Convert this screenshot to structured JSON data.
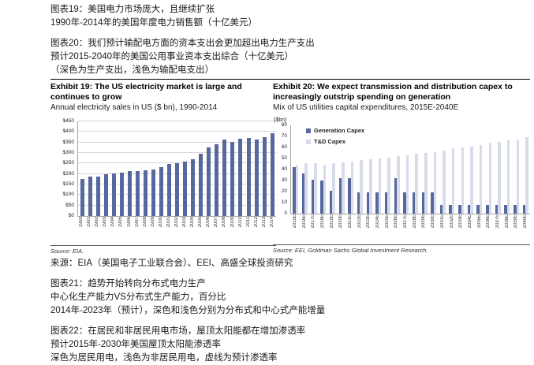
{
  "top_notes": [
    "图表19：美国电力市场庞大，且继续扩张",
    "1990年-2014年的美国年度电力销售额（十亿美元）",
    "图表20：我们预计输配电方面的资本支出会更加超出电力生产支出",
    "预计2015-2040年的美国公用事业资本支出综合（十亿美元）",
    "（深色为生产支出，浅色为输配电支出）"
  ],
  "exhibit19": {
    "title": "Exhibit 19: The US electricity market is large and continues to grow",
    "subtitle": "Annual electricity sales in US ($ bn), 1990-2014",
    "source": "Source: EIA."
  },
  "exhibit20": {
    "title": "Exhibit 20: We expect transmission and distribution capex to increasingly outstrip spending on generation",
    "subtitle": "Mix of US utilities capital expenditures, 2015E-2040E",
    "unit_label": "($bn)",
    "legend": [
      {
        "label": "Generation Capex",
        "color": "#56689E"
      },
      {
        "label": "T&D Capex",
        "color": "#D8DCEA"
      }
    ],
    "source": "Source: EEI, Goldman Sachs Global Investment Research."
  },
  "bottom_notes": [
    "来源：EIA（美国电子工业联合会）、EEI、高盛全球投资研究",
    "图表21：趋势开始转向分布式电力生产",
    "中心化生产能力VS分布式生产能力，百分比",
    "2014年-2023年（预计），深色和浅色分别为分布式和中心式产能增量",
    "图表22：在居民和非居民用电市场，屋顶太阳能都在增加渗透率",
    "预计2015年-2030年美国屋顶太阳能渗透率",
    "深色为居民用电，浅色为非居民用电，虚线为预计渗透率"
  ],
  "colors": {
    "bar_dark": "#56689E",
    "bar_light": "#D8DCEA",
    "gridline": "#D8D8D8",
    "axis": "#A6A6A6"
  },
  "chart_data": [
    {
      "type": "bar",
      "title": "Exhibit 19: The US electricity market is large and continues to grow",
      "subtitle": "Annual electricity sales in US ($ bn), 1990-2014",
      "categories": [
        "1990",
        "1991",
        "1992",
        "1993",
        "1994",
        "1995",
        "1996",
        "1997",
        "1998",
        "1999",
        "2000",
        "2001",
        "2002",
        "2003",
        "2004",
        "2005",
        "2006",
        "2007",
        "2008",
        "2009",
        "2010",
        "2011",
        "2012",
        "2013",
        "2014"
      ],
      "values": [
        178,
        186,
        188,
        198,
        202,
        208,
        213,
        215,
        218,
        220,
        233,
        248,
        250,
        260,
        270,
        298,
        326,
        343,
        363,
        353,
        368,
        371,
        364,
        374,
        392
      ],
      "xlabel": "",
      "ylabel": "$ bn",
      "yprefix": "$",
      "ylim": [
        0,
        450
      ],
      "ystep": 50,
      "grid": true,
      "legend_position": "none"
    },
    {
      "type": "bar",
      "title": "Exhibit 20: We expect transmission and distribution capex to increasingly outstrip spending on generation",
      "subtitle": "Mix of US utilities capital expenditures, 2015E-2040E",
      "categories": [
        "2015E",
        "2016E",
        "2017E",
        "2018E",
        "2019E",
        "2020E",
        "2021E",
        "2022E",
        "2023E",
        "2024E",
        "2025E",
        "2026E",
        "2027E",
        "2028E",
        "2029E",
        "2030E",
        "2031E",
        "2032E",
        "2033E",
        "2034E",
        "2035E",
        "2036E",
        "2037E",
        "2038E",
        "2039E",
        "2040E"
      ],
      "series": [
        {
          "name": "Generation Capex",
          "values": [
            42,
            36.5,
            30.5,
            30,
            20.5,
            32,
            32,
            19,
            19,
            19,
            19,
            32,
            19,
            19,
            19,
            19,
            8,
            8,
            8,
            8,
            8,
            8,
            8,
            8,
            8,
            8
          ]
        },
        {
          "name": "T&D Capex",
          "values": [
            44,
            45.5,
            46,
            44.5,
            45.5,
            46.5,
            47.5,
            48.5,
            49,
            50,
            51,
            52,
            53,
            54,
            55,
            56,
            57.5,
            59,
            60,
            61,
            62.5,
            64,
            65,
            66.5,
            67.5,
            69
          ]
        }
      ],
      "xlabel": "",
      "ylabel": "($bn)",
      "ylim": [
        0,
        80
      ],
      "ystep": 10,
      "grid": false,
      "legend_position": "top-left"
    }
  ]
}
